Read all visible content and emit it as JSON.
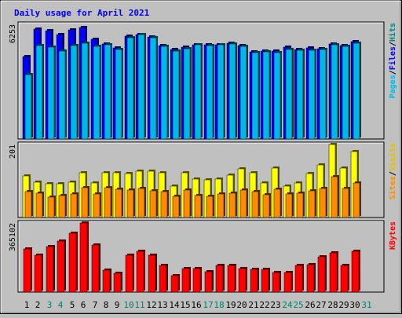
{
  "chart_data": {
    "type": "bar",
    "title": "Daily usage for April 2021",
    "days": [
      "1",
      "2",
      "3",
      "4",
      "5",
      "6",
      "7",
      "8",
      "9",
      "10",
      "11",
      "12",
      "13",
      "14",
      "15",
      "16",
      "17",
      "18",
      "19",
      "20",
      "21",
      "22",
      "23",
      "24",
      "25",
      "26",
      "27",
      "28",
      "29",
      "30",
      "31"
    ],
    "weekend_days": [
      "3",
      "4",
      "10",
      "11",
      "17",
      "18",
      "24",
      "25",
      "31"
    ],
    "panels": [
      {
        "id": "hits-files-pages",
        "ymax_label": "6253",
        "ymax": 6253,
        "legend": [
          "Pages",
          "/",
          "Files",
          "/",
          "Hits"
        ],
        "series": [
          {
            "name": "Hits",
            "color": "#0000ff",
            "values": [
              4500,
              6000,
              5900,
              5700,
              5950,
              6090,
              5450,
              5200,
              4980,
              5600,
              5700,
              5570,
              5100,
              4880,
              5000,
              5150,
              5120,
              5160,
              5230,
              5100,
              4770,
              4790,
              4780,
              4990,
              4890,
              4950,
              4930,
              5170,
              5110,
              5320
            ]
          },
          {
            "name": "Files",
            "color": "#00b8e8",
            "values": [
              3500,
              5100,
              5030,
              4790,
              5080,
              5220,
              5050,
              5160,
              4900,
              5540,
              5700,
              5530,
              5070,
              4810,
              4930,
              5150,
              5110,
              5140,
              5190,
              5040,
              4720,
              4750,
              4730,
              4880,
              4840,
              4860,
              4870,
              5150,
              5050,
              5230
            ]
          }
        ]
      },
      {
        "id": "visits-sites",
        "ymax_label": "201",
        "ymax": 201,
        "legend": [
          "Sites",
          "/",
          "Visits"
        ],
        "series": [
          {
            "name": "Visits",
            "color": "#ffff00",
            "values": [
              115,
              98,
              93,
              92,
              98,
              123,
              96,
              124,
              124,
              121,
              128,
              128,
              124,
              86,
              124,
              106,
              104,
              106,
              116,
              133,
              124,
              96,
              136,
              86,
              96,
              120,
              144,
              201,
              136,
              182
            ]
          },
          {
            "name": "Sites",
            "color": "#ff8c00",
            "values": [
              71,
              66,
              57,
              61,
              64,
              82,
              64,
              82,
              78,
              76,
              79,
              73,
              71,
              59,
              76,
              61,
              58,
              64,
              67,
              75,
              71,
              62,
              78,
              64,
              66,
              73,
              79,
              112,
              80,
              95
            ]
          }
        ]
      },
      {
        "id": "kbytes",
        "ymax_label": "365102",
        "ymax": 365102,
        "legend": [
          "KBytes"
        ],
        "series": [
          {
            "name": "KBytes",
            "color": "#ff0000",
            "values": [
              227000,
              196000,
              241000,
              268000,
              313000,
              365102,
              249000,
              115000,
              100000,
              197000,
              215000,
              196000,
              143000,
              88000,
              123000,
              123000,
              107000,
              141000,
              143000,
              126000,
              120000,
              121000,
              103000,
              105000,
              142000,
              147000,
              185000,
              206000,
              140000,
              217000
            ]
          }
        ]
      }
    ]
  }
}
